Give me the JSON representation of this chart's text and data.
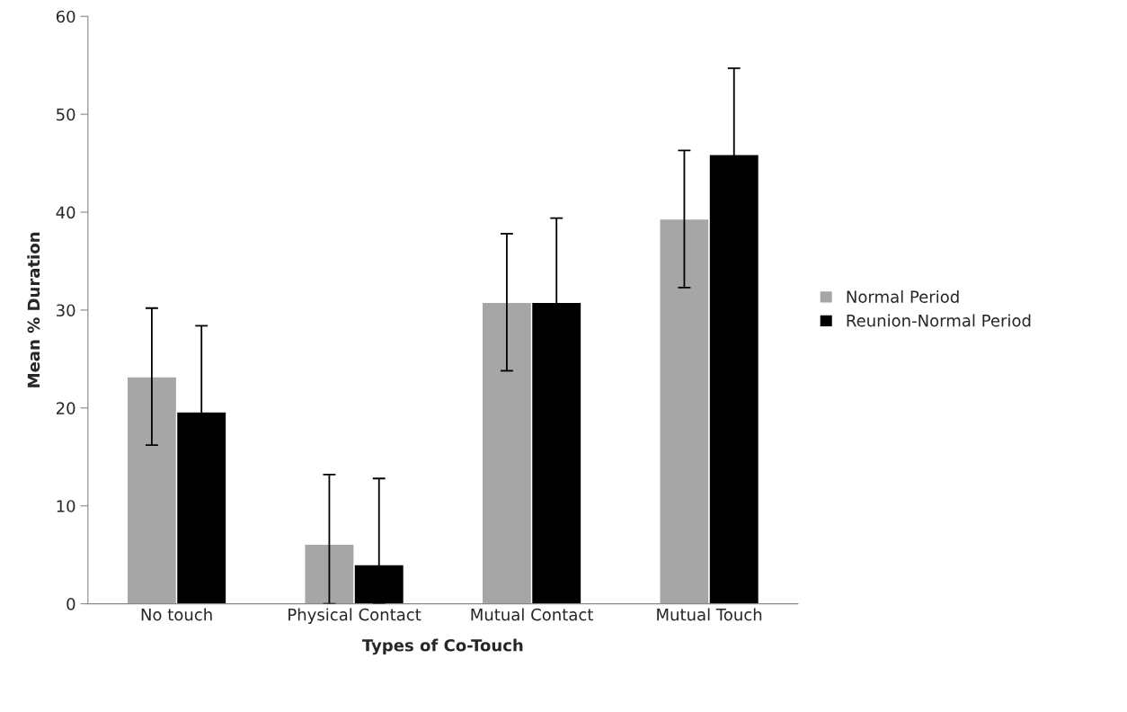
{
  "chart_data": {
    "type": "bar",
    "xlabel": "Types of Co-Touch",
    "ylabel": "Mean % Duration",
    "categories": [
      "No touch",
      "Physical Contact",
      "Mutual Contact",
      "Mutual Touch"
    ],
    "series": [
      {
        "name": "Normal Period",
        "color": "#a6a6a6",
        "values": [
          23.2,
          6.1,
          30.8,
          39.3
        ],
        "errors": [
          7.0,
          [
            0,
            13.2
          ],
          7.0,
          7.0
        ]
      },
      {
        "name": "Reunion-Normal Period",
        "color": "#000000",
        "values": [
          19.6,
          4.0,
          30.8,
          45.9
        ],
        "errors": [
          8.8,
          [
            0,
            12.8
          ],
          8.6,
          8.8
        ]
      }
    ],
    "ylim": [
      0,
      60
    ],
    "yticks": [
      0,
      10,
      20,
      30,
      40,
      50,
      60
    ],
    "grid": false,
    "legend": "right"
  }
}
